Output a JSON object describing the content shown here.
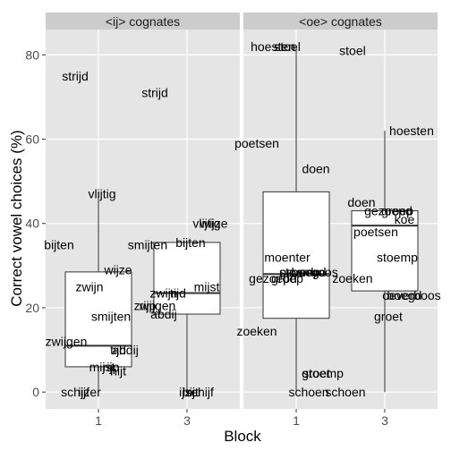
{
  "chart_data": {
    "type": "boxplot",
    "xlabel": "Block",
    "ylabel": "Correct vowel choices (%)",
    "ylim": [
      -4,
      86
    ],
    "yticks": [
      0,
      20,
      40,
      60,
      80
    ],
    "categories": [
      "1",
      "3"
    ],
    "grid": true,
    "panels": [
      {
        "title": "<ij> cognates",
        "boxes": [
          {
            "block": "1",
            "min": 0,
            "q1": 6,
            "median": 11,
            "q3": 28.5,
            "max": 47
          },
          {
            "block": "3",
            "min": 0,
            "q1": 18.5,
            "median": 23.5,
            "q3": 35.5,
            "max": 35.5
          }
        ],
        "words": [
          {
            "block": "1",
            "label": "strijd",
            "y": 75
          },
          {
            "block": "1",
            "label": "vlijtig",
            "y": 47
          },
          {
            "block": "1",
            "label": "bijten",
            "y": 35
          },
          {
            "block": "1",
            "label": "wijze",
            "y": 29
          },
          {
            "block": "1",
            "label": "zwijn",
            "y": 25
          },
          {
            "block": "1",
            "label": "smijten",
            "y": 18
          },
          {
            "block": "1",
            "label": "zwijgen",
            "y": 12
          },
          {
            "block": "1",
            "label": "abdij",
            "y": 10
          },
          {
            "block": "1",
            "label": "tijd",
            "y": 10
          },
          {
            "block": "1",
            "label": "mijst",
            "y": 6
          },
          {
            "block": "1",
            "label": "rijp",
            "y": 6
          },
          {
            "block": "1",
            "label": "hijt",
            "y": 5
          },
          {
            "block": "1",
            "label": "ijzer",
            "y": 0
          },
          {
            "block": "1",
            "label": "schijf",
            "y": 0
          },
          {
            "block": "3",
            "label": "strijd",
            "y": 71
          },
          {
            "block": "3",
            "label": "wijze",
            "y": 40
          },
          {
            "block": "3",
            "label": "vlijtig",
            "y": 40
          },
          {
            "block": "3",
            "label": "bijten",
            "y": 35.5
          },
          {
            "block": "3",
            "label": "smijten",
            "y": 35
          },
          {
            "block": "3",
            "label": "mijst",
            "y": 25
          },
          {
            "block": "3",
            "label": "tijd",
            "y": 23.5
          },
          {
            "block": "3",
            "label": "zwijn",
            "y": 23.5
          },
          {
            "block": "3",
            "label": "zwijgen",
            "y": 20.5
          },
          {
            "block": "3",
            "label": "rijp",
            "y": 20.5
          },
          {
            "block": "3",
            "label": "abdij",
            "y": 18.5
          },
          {
            "block": "3",
            "label": "hijt",
            "y": 0
          },
          {
            "block": "3",
            "label": "schijf",
            "y": 0
          },
          {
            "block": "3",
            "label": "ijzer",
            "y": 0
          }
        ]
      },
      {
        "title": "<oe> cognates",
        "boxes": [
          {
            "block": "1",
            "min": 0,
            "q1": 17.5,
            "median": 28,
            "q3": 47.5,
            "max": 82
          },
          {
            "block": "3",
            "min": 0,
            "q1": 24,
            "median": 39.5,
            "q3": 43,
            "max": 62
          }
        ],
        "words": [
          {
            "block": "1",
            "label": "hoesten",
            "y": 82
          },
          {
            "block": "1",
            "label": "stoel",
            "y": 82
          },
          {
            "block": "1",
            "label": "poetsen",
            "y": 59
          },
          {
            "block": "1",
            "label": "doen",
            "y": 53
          },
          {
            "block": "1",
            "label": "moenter",
            "y": 32
          },
          {
            "block": "1",
            "label": "boegd",
            "y": 28.5
          },
          {
            "block": "1",
            "label": "stoemp",
            "y": 28.5
          },
          {
            "block": "1",
            "label": "oeverboos",
            "y": 28.5
          },
          {
            "block": "1",
            "label": "gezoepd",
            "y": 27
          },
          {
            "block": "1",
            "label": "groep",
            "y": 27
          },
          {
            "block": "1",
            "label": "zoeken",
            "y": 14.5
          },
          {
            "block": "1",
            "label": "groet",
            "y": 4.5
          },
          {
            "block": "1",
            "label": "stoemp",
            "y": 4.5
          },
          {
            "block": "1",
            "label": "schoen",
            "y": 0
          },
          {
            "block": "3",
            "label": "stoel",
            "y": 81
          },
          {
            "block": "3",
            "label": "hoesten",
            "y": 62
          },
          {
            "block": "3",
            "label": "doen",
            "y": 45
          },
          {
            "block": "3",
            "label": "gezoepd",
            "y": 43
          },
          {
            "block": "3",
            "label": "groep",
            "y": 43
          },
          {
            "block": "3",
            "label": "koe",
            "y": 41
          },
          {
            "block": "3",
            "label": "poetsen",
            "y": 38
          },
          {
            "block": "3",
            "label": "stoemp",
            "y": 32
          },
          {
            "block": "3",
            "label": "zoeken",
            "y": 27
          },
          {
            "block": "3",
            "label": "oeverboos",
            "y": 23
          },
          {
            "block": "3",
            "label": "boegd",
            "y": 23
          },
          {
            "block": "3",
            "label": "groet",
            "y": 18
          },
          {
            "block": "3",
            "label": "schoen",
            "y": 0
          }
        ]
      }
    ]
  }
}
